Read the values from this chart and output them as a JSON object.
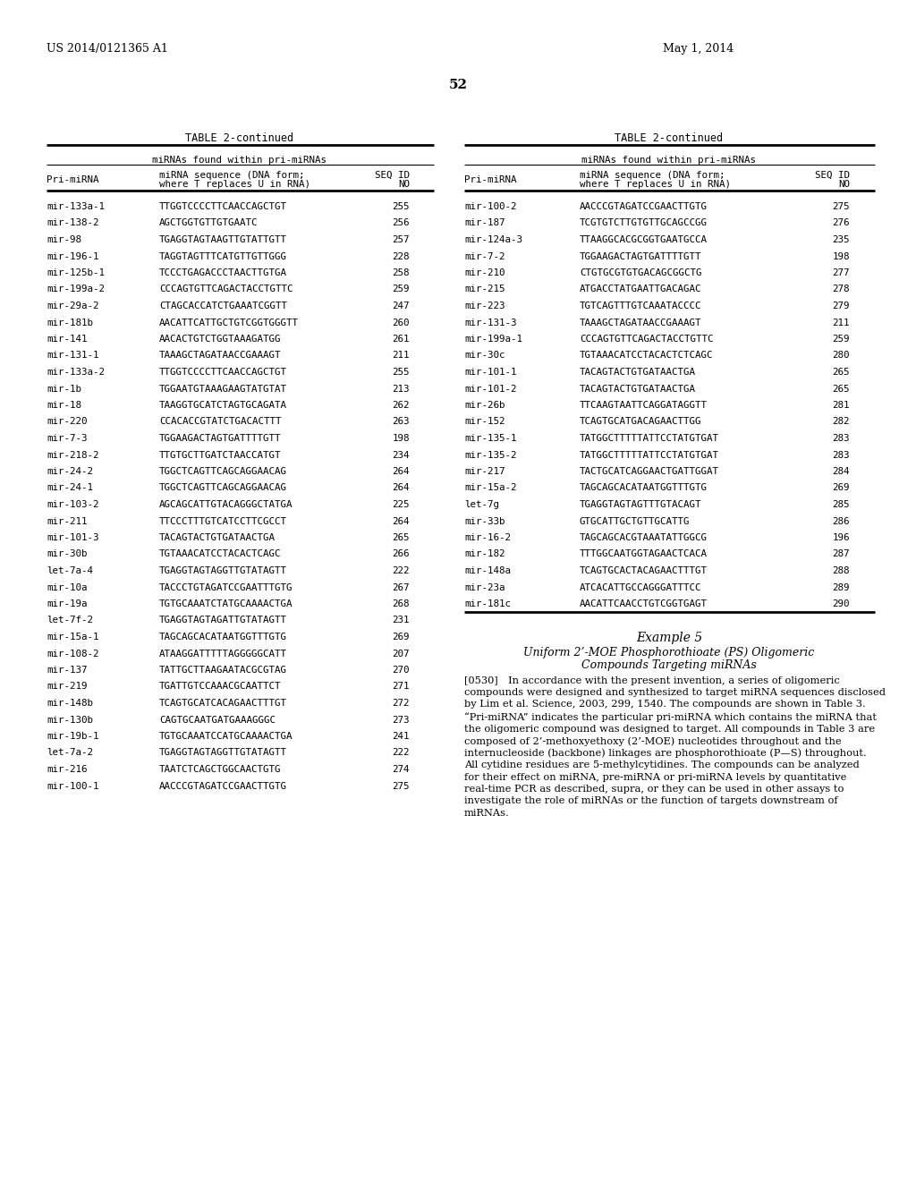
{
  "header_left": "US 2014/0121365 A1",
  "header_right": "May 1, 2014",
  "page_number": "52",
  "table_title": "TABLE 2-continued",
  "table_subtitle": "miRNAs found within pri-miRNAs",
  "left_table": [
    [
      "mir-133a-1",
      "TTGGTCCCCTTCAACCAGCTGT",
      "255"
    ],
    [
      "mir-138-2",
      "AGCTGGTGTTGTGAATC",
      "256"
    ],
    [
      "mir-98",
      "TGAGGTAGTAAGTTGTATTGTT",
      "257"
    ],
    [
      "mir-196-1",
      "TAGGTAGTTTCATGTTGTTGGG",
      "228"
    ],
    [
      "mir-125b-1",
      "TCCCTGAGACCCTAACTTGTGA",
      "258"
    ],
    [
      "mir-199a-2",
      "CCCAGTGTTCAGACTACCTGTTC",
      "259"
    ],
    [
      "mir-29a-2",
      "CTAGCACCATCTGAAATCGGTT",
      "247"
    ],
    [
      "mir-181b",
      "AACATTCATTGCTGTCGGTGGGTT",
      "260"
    ],
    [
      "mir-141",
      "AACACTGTCTGGTAAAGATGG",
      "261"
    ],
    [
      "mir-131-1",
      "TAAAGCTAGATAACCGAAAGT",
      "211"
    ],
    [
      "mir-133a-2",
      "TTGGTCCCCTTCAACCAGCTGT",
      "255"
    ],
    [
      "mir-1b",
      "TGGAATGTAAAGAAGTATGTAT",
      "213"
    ],
    [
      "mir-18",
      "TAAGGTGCATCTAGTGCAGATA",
      "262"
    ],
    [
      "mir-220",
      "CCACACCGTATCTGACACTTT",
      "263"
    ],
    [
      "mir-7-3",
      "TGGAAGACTAGTGATTTTGTT",
      "198"
    ],
    [
      "mir-218-2",
      "TTGTGCTTGATCTAACCATGT",
      "234"
    ],
    [
      "mir-24-2",
      "TGGCTCAGTTCAGCAGGAACAG",
      "264"
    ],
    [
      "mir-24-1",
      "TGGCTCAGTTCAGCAGGAACAG",
      "264"
    ],
    [
      "mir-103-2",
      "AGCAGCATTGTACAGGGCTATGA",
      "225"
    ],
    [
      "mir-211",
      "TTCCCTTTGTCATCCTTCGCCT",
      "264"
    ],
    [
      "mir-101-3",
      "TACAGTACTGTGATAACTGA",
      "265"
    ],
    [
      "mir-30b",
      "TGTAAACATCCTACACTCAGC",
      "266"
    ],
    [
      "let-7a-4",
      "TGAGGTAGTAGGTTGTATAGTT",
      "222"
    ],
    [
      "mir-10a",
      "TACCCTGTAGATCCGAATTTGTG",
      "267"
    ],
    [
      "mir-19a",
      "TGTGCAAATCTATGCAAAACTGA",
      "268"
    ],
    [
      "let-7f-2",
      "TGAGGTAGTAGATTGTATAGTT",
      "231"
    ],
    [
      "mir-15a-1",
      "TAGCAGCACATAATGGTTTGTG",
      "269"
    ],
    [
      "mir-108-2",
      "ATAAGGATTTTTAGGGGGCATT",
      "207"
    ],
    [
      "mir-137",
      "TATTGCTTAAGAATACGCGTAG",
      "270"
    ],
    [
      "mir-219",
      "TGATTGTCCAAACGCAATTCT",
      "271"
    ],
    [
      "mir-148b",
      "TCAGTGCATCACAGAACTTTGT",
      "272"
    ],
    [
      "mir-130b",
      "CAGTGCAATGATGAAAGGGC",
      "273"
    ],
    [
      "mir-19b-1",
      "TGTGCAAATCCATGCAAAACTGA",
      "241"
    ],
    [
      "let-7a-2",
      "TGAGGTAGTAGGTTGTATAGTT",
      "222"
    ],
    [
      "mir-216",
      "TAATCTCAGCTGGCAACTGTG",
      "274"
    ],
    [
      "mir-100-1",
      "AACCCGTAGATCCGAACTTGTG",
      "275"
    ]
  ],
  "right_table": [
    [
      "mir-100-2",
      "AACCCGTAGATCCGAACTTGTG",
      "275"
    ],
    [
      "mir-187",
      "TCGTGTCTTGTGTTGCAGCCGG",
      "276"
    ],
    [
      "mir-124a-3",
      "TTAAGGCACGCGGTGAATGCCA",
      "235"
    ],
    [
      "mir-7-2",
      "TGGAAGACTAGTGATTTTGTT",
      "198"
    ],
    [
      "mir-210",
      "CTGTGCGTGTGACAGCGGCTG",
      "277"
    ],
    [
      "mir-215",
      "ATGACCTATGAATTGACAGAC",
      "278"
    ],
    [
      "mir-223",
      "TGTCAGTTTGTCAAATACCCC",
      "279"
    ],
    [
      "mir-131-3",
      "TAAAGCTAGATAACCGAAAGT",
      "211"
    ],
    [
      "mir-199a-1",
      "CCCAGTGTTCAGACTACCTGTTC",
      "259"
    ],
    [
      "mir-30c",
      "TGTAAACATCCTACACTCTCAGC",
      "280"
    ],
    [
      "mir-101-1",
      "TACAGTACTGTGATAACTGA",
      "265"
    ],
    [
      "mir-101-2",
      "TACAGTACTGTGATAACTGA",
      "265"
    ],
    [
      "mir-26b",
      "TTCAAGTAATTCAGGATAGGTT",
      "281"
    ],
    [
      "mir-152",
      "TCAGTGCATGACAGAACTTGG",
      "282"
    ],
    [
      "mir-135-1",
      "TATGGCTTTTTATTCCTATGTGAT",
      "283"
    ],
    [
      "mir-135-2",
      "TATGGCTTTTTATTCCTATGTGAT",
      "283"
    ],
    [
      "mir-217",
      "TACTGCATCAGGAACTGATTGGAT",
      "284"
    ],
    [
      "mir-15a-2",
      "TAGCAGCACATAATGGTTTGTG",
      "269"
    ],
    [
      "let-7g",
      "TGAGGTAGTAGTTTGTACAGT",
      "285"
    ],
    [
      "mir-33b",
      "GTGCATTGCTGTTGCATTG",
      "286"
    ],
    [
      "mir-16-2",
      "TAGCAGCACGTAAATATTGGCG",
      "196"
    ],
    [
      "mir-182",
      "TTTGGCAATGGTAGAACTCACA",
      "287"
    ],
    [
      "mir-148a",
      "TCAGTGCACTACAGAACTTTGT",
      "288"
    ],
    [
      "mir-23a",
      "ATCACATTGCCAGGGATTTCC",
      "289"
    ],
    [
      "mir-181c",
      "AACATTCAACCTGTCGGTGAGT",
      "290"
    ]
  ],
  "example_title": "Example 5",
  "example_subtitle1": "Uniform 2’-MOE Phosphorothioate (PS) Oligomeric",
  "example_subtitle2": "Compounds Targeting miRNAs",
  "example_paragraph_num": "[0530]",
  "example_paragraph": "In accordance with the present invention, a series of oligomeric compounds were designed and synthesized to target miRNA sequences disclosed by Lim et al. Science, 2003, 299, 1540. The compounds are shown in Table 3. “Pri-miRNA” indicates the particular pri-miRNA which contains the miRNA that the oligomeric compound was designed to target. All compounds in Table 3 are composed of 2’-methoxyethoxy (2’-MOE) nucleotides throughout and the internucleoside (backbone) linkages are phosphorothioate (P—S) throughout. All cytidine residues are 5-methylcytidines. The compounds can be analyzed for their effect on miRNA, pre-miRNA or pri-miRNA levels by quantitative real-time PCR as described, supra, or they can be used in other assays to investigate the role of miRNAs or the function of targets downstream of miRNAs."
}
